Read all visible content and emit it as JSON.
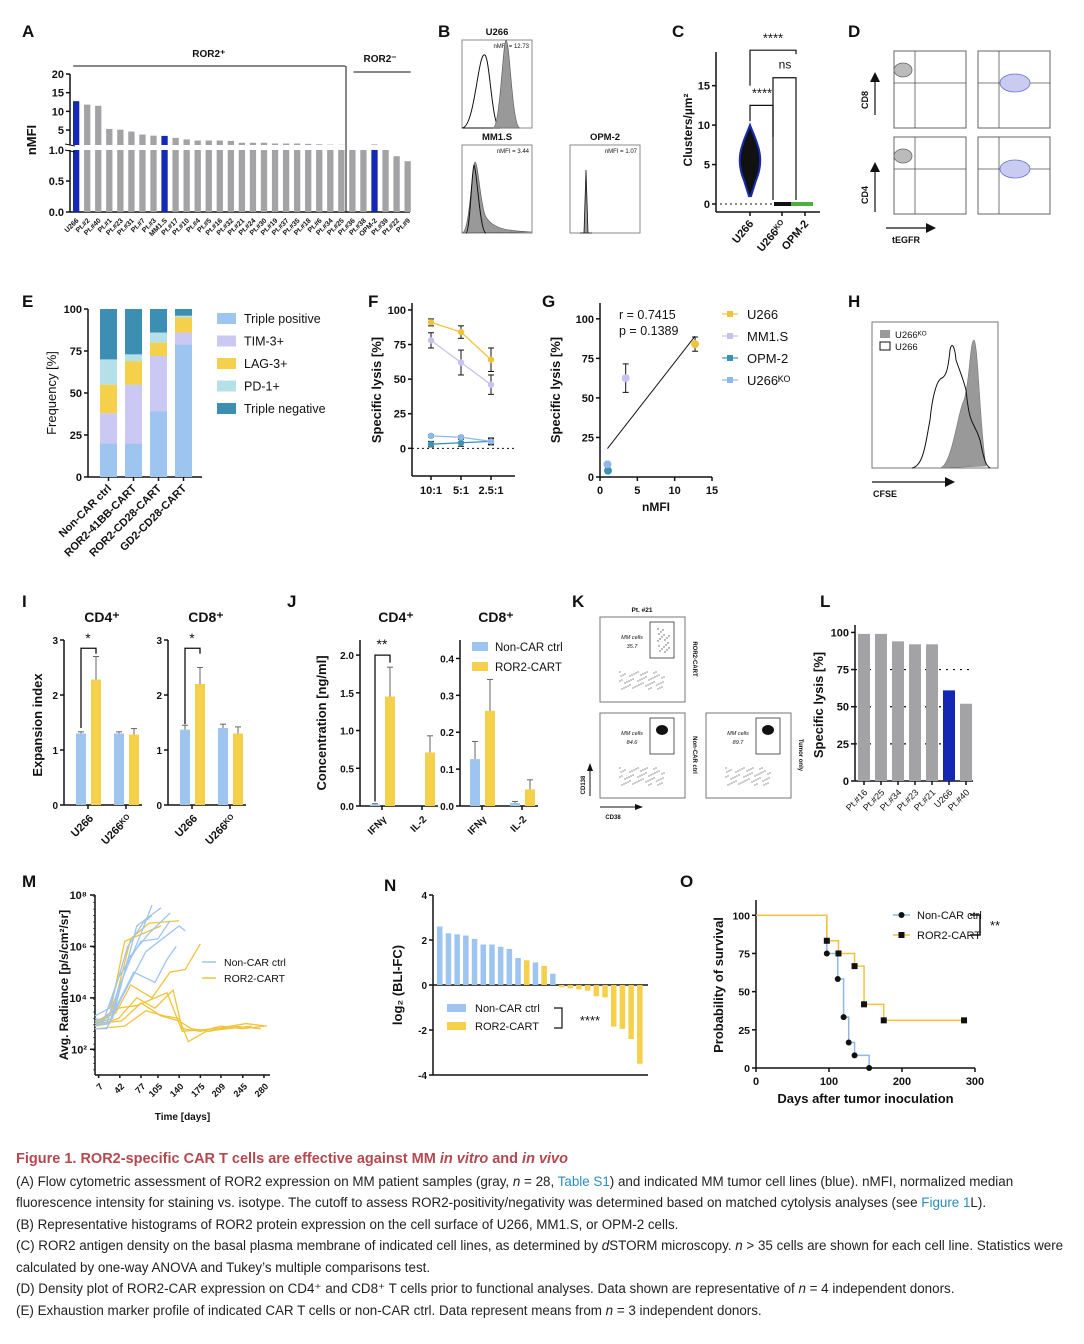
{
  "panels": {
    "A": {
      "letter": "A",
      "group_pos": "ROR2⁺",
      "group_neg": "ROR2⁻",
      "ylabel": "nMFI"
    },
    "B": {
      "letter": "B",
      "hist": [
        {
          "title": "U266",
          "nmfi": "nMFI = 12.73"
        },
        {
          "title": "MM1.S",
          "nmfi": "nMFI = 3.44"
        },
        {
          "title": "OPM-2",
          "nmfi": "nMFI = 1.07"
        }
      ]
    },
    "C": {
      "letter": "C",
      "ylabel": "Clusters/µm²",
      "sig_top": "****",
      "sig_ns": "ns",
      "sig_mid": "****"
    },
    "D": {
      "letter": "D",
      "ylabel_top": "CD8",
      "ylabel_bottom": "CD4",
      "xlabel": "tEGFR"
    },
    "E": {
      "letter": "E"
    },
    "F": {
      "letter": "F"
    },
    "G": {
      "letter": "G",
      "r": "r = 0.7415",
      "p": "p = 0.1389"
    },
    "H": {
      "letter": "H",
      "legend": [
        "U266ᴷᴼ",
        "U266"
      ],
      "xlabel": "CFSE"
    },
    "I": {
      "letter": "I"
    },
    "J": {
      "letter": "J"
    },
    "K": {
      "letter": "K",
      "title": "Pt. #21",
      "gates": [
        {
          "label": "MM cells",
          "value": "35.7",
          "condition": "ROR2-CART"
        },
        {
          "label": "MM cells",
          "value": "84.6",
          "condition": "Non-CAR ctrl"
        },
        {
          "label": "MM cells",
          "value": "89.7",
          "condition": "Tumor only"
        }
      ],
      "ylabel": "CD138",
      "xlabel": "CD38"
    },
    "L": {
      "letter": "L"
    },
    "M": {
      "letter": "M"
    },
    "N": {
      "letter": "N"
    },
    "O": {
      "letter": "O"
    }
  },
  "caption": {
    "title_prefix": "Figure 1.  ROR2-specific CAR T cells are effective against MM ",
    "title_it1": "in vitro",
    "title_mid": " and ",
    "title_it2": "in vivo",
    "A_1": "(A) Flow cytometric assessment of ROR2 expression on MM patient samples (gray, ",
    "A_n": "n",
    "A_2": " = 28, ",
    "A_link1": "Table S1",
    "A_3": ") and indicated MM tumor cell lines (blue). nMFI, normalized median fluorescence intensity for staining vs. isotype. The cutoff to assess ROR2-positivity/negativity was determined based on matched cytolysis analyses (see ",
    "A_link2": "Figure 1",
    "A_4": "L).",
    "B": "(B) Representative histograms of ROR2 protein expression on the cell surface of U266, MM1.S, or OPM-2 cells.",
    "C_1": "(C) ROR2 antigen density on the basal plasma membrane of indicated cell lines, as determined by ",
    "C_d": "d",
    "C_2": "STORM microscopy. ",
    "C_n": "n",
    "C_3": " > 35 cells are shown for each cell line. Statistics were calculated by one-way ANOVA and Tukey’s multiple comparisons test.",
    "D_1": "(D) Density plot of ROR2-CAR expression on CD4⁺ and CD8⁺ T cells prior to functional analyses. Data shown are representative of ",
    "D_n": "n",
    "D_2": " = 4 independent donors.",
    "E_1": "(E) Exhaustion marker profile of indicated CAR T cells or non-CAR ctrl. Data represent means from ",
    "E_n": "n",
    "E_2": " = 3 independent donors."
  },
  "chart_data": [
    {
      "id": "A",
      "type": "bar",
      "title": "",
      "xlabel": "",
      "ylabel": "nMFI",
      "categories": [
        "U266",
        "Pt.#2",
        "Pt.#40",
        "Pt.#1",
        "Pt.#23",
        "Pt.#31",
        "Pt.#7",
        "Pt.#3",
        "MM1.S",
        "Pt.#17",
        "Pt.#10",
        "Pt.#4",
        "Pt.#5",
        "Pt.#16",
        "Pt.#32",
        "Pt.#21",
        "Pt.#24",
        "Pt.#30",
        "Pt.#19",
        "Pt.#37",
        "Pt.#35",
        "Pt.#18",
        "Pt.#6",
        "Pt.#34",
        "Pt.#25",
        "Pt.#36",
        "Pt.#38",
        "OPM-2",
        "Pt.#39",
        "Pt.#22",
        "Pt.#9"
      ],
      "values": [
        12.73,
        11.8,
        11.5,
        5.3,
        5.1,
        4.6,
        3.8,
        3.5,
        3.44,
        2.9,
        2.5,
        2.2,
        2.2,
        2.2,
        2.1,
        1.6,
        1.6,
        1.6,
        1.4,
        1.4,
        1.4,
        1.3,
        1.2,
        1.1,
        1.05,
        1.0,
        1.0,
        1.07,
        1.0,
        0.9,
        0.82
      ],
      "colors": [
        "blue",
        "gray",
        "gray",
        "gray",
        "gray",
        "gray",
        "gray",
        "gray",
        "blue",
        "gray",
        "gray",
        "gray",
        "gray",
        "gray",
        "gray",
        "gray",
        "gray",
        "gray",
        "gray",
        "gray",
        "gray",
        "gray",
        "gray",
        "gray",
        "gray",
        "gray",
        "gray",
        "blue",
        "gray",
        "gray",
        "gray"
      ],
      "ylim_lower": [
        0,
        1.0
      ],
      "ylim_upper": [
        1.0,
        20
      ],
      "yticks_lower": [
        "0.0",
        "0.5",
        "1.0"
      ],
      "yticks_upper": [
        "5",
        "10",
        "15",
        "20"
      ],
      "groups": [
        {
          "label": "ROR2⁺",
          "from": 0,
          "to": 24
        },
        {
          "label": "ROR2⁻",
          "from": 25,
          "to": 30
        }
      ]
    },
    {
      "id": "C",
      "type": "scatter",
      "ylabel": "Clusters/µm²",
      "categories": [
        "U266",
        "U266ᴷᴼ",
        "OPM-2"
      ],
      "median": [
        6.0,
        0,
        0
      ],
      "range": [
        [
          1,
          10
        ],
        [
          0,
          0
        ],
        [
          0,
          0
        ]
      ],
      "ylim": [
        0,
        18
      ],
      "yticks": [
        "0",
        "5",
        "10",
        "15"
      ],
      "colors": [
        "#1a2bb0",
        "#111111",
        "#4fae3f"
      ]
    },
    {
      "id": "E",
      "type": "bar",
      "stacked": true,
      "ylabel": "Frequency [%]",
      "ylim": [
        0,
        100
      ],
      "yticks": [
        "0",
        "25",
        "50",
        "75",
        "100"
      ],
      "categories": [
        "Non-CAR ctrl",
        "ROR2-41BB-CART",
        "ROR2-CD28-CART",
        "GD2-CD28-CART"
      ],
      "series": [
        {
          "name": "Triple positive",
          "color": "#9ec4f0",
          "values": [
            20,
            20,
            39,
            79
          ]
        },
        {
          "name": "TIM-3+",
          "color": "#cbc8f3",
          "values": [
            18,
            35,
            33,
            7
          ]
        },
        {
          "name": "LAG-3+",
          "color": "#f5d04a",
          "values": [
            17,
            14,
            8,
            9
          ]
        },
        {
          "name": "PD-1+",
          "color": "#b5e0ea",
          "values": [
            15,
            4,
            6,
            1
          ]
        },
        {
          "name": "Triple negative",
          "color": "#3c8fb3",
          "values": [
            30,
            27,
            14,
            4
          ]
        }
      ],
      "legend": "right"
    },
    {
      "id": "F",
      "type": "line",
      "ylabel": "Specific lysis [%]",
      "categories": [
        "10:1",
        "5:1",
        "2.5:1"
      ],
      "ylim": [
        -20,
        105
      ],
      "yticks": [
        "0",
        "25",
        "50",
        "75",
        "100"
      ],
      "series": [
        {
          "name": "U266",
          "color": "#f0c43a",
          "values": [
            91,
            84,
            64
          ],
          "err": [
            2.5,
            4.5,
            8.5
          ]
        },
        {
          "name": "MM1.S",
          "color": "#c7c3ef",
          "values": [
            78,
            62,
            46
          ],
          "err": [
            5.5,
            9,
            7
          ]
        },
        {
          "name": "OPM-2",
          "color": "#3a93b2",
          "values": [
            3,
            4,
            5
          ],
          "err": [
            2,
            2.5,
            2.5
          ]
        },
        {
          "name": "U266ᴷᴼ",
          "color": "#8fb8e8",
          "values": [
            9,
            8,
            5
          ],
          "err": [
            1,
            1,
            2
          ]
        }
      ]
    },
    {
      "id": "G",
      "type": "scatter",
      "xlabel": "nMFI",
      "ylabel": "Specific lysis [%]",
      "xlim": [
        0,
        15
      ],
      "ylim": [
        0,
        110
      ],
      "xticks": [
        "0",
        "5",
        "10",
        "15"
      ],
      "yticks": [
        "0",
        "25",
        "50",
        "75",
        "100"
      ],
      "annotations": [
        "r = 0.7415",
        "p = 0.1389"
      ],
      "points": [
        {
          "name": "U266",
          "x": 12.73,
          "y": 84,
          "err": 4.5,
          "color": "#f0c43a"
        },
        {
          "name": "MM1.S",
          "x": 3.44,
          "y": 62.5,
          "err": 9,
          "color": "#c7c3ef"
        },
        {
          "name": "OPM-2",
          "x": 1.07,
          "y": 4,
          "err": 1.5,
          "color": "#3a93b2"
        },
        {
          "name": "U266ᴷᴼ",
          "x": 1.0,
          "y": 8,
          "err": 1,
          "color": "#8fb8e8"
        }
      ],
      "fit": {
        "x": [
          1,
          12.73
        ],
        "y": [
          18,
          89
        ]
      },
      "legend": [
        "U266",
        "MM1.S",
        "OPM-2",
        "U266ᴷᴼ"
      ]
    },
    {
      "id": "I_CD4",
      "type": "bar",
      "title": "CD4⁺",
      "ylabel": "Expansion index",
      "ylim": [
        0,
        3
      ],
      "yticks": [
        "0",
        "1",
        "2",
        "3"
      ],
      "categories": [
        "U266",
        "U266ᴷᴼ"
      ],
      "series": [
        {
          "name": "Non-CAR ctrl",
          "color": "#9ec4f0",
          "values": [
            1.3,
            1.3
          ],
          "err": [
            0.03,
            0.03
          ]
        },
        {
          "name": "ROR2-CART",
          "color": "#f5d04a",
          "values": [
            2.28,
            1.28
          ],
          "err": [
            0.42,
            0.11
          ]
        }
      ],
      "sig": "*"
    },
    {
      "id": "I_CD8",
      "type": "bar",
      "title": "CD8⁺",
      "ylabel": "",
      "ylim": [
        0,
        3
      ],
      "yticks": [
        "0",
        "1",
        "2",
        "3"
      ],
      "categories": [
        "U266",
        "U266ᴷᴼ"
      ],
      "series": [
        {
          "name": "Non-CAR ctrl",
          "color": "#9ec4f0",
          "values": [
            1.37,
            1.4
          ],
          "err": [
            0.08,
            0.07
          ]
        },
        {
          "name": "ROR2-CART",
          "color": "#f5d04a",
          "values": [
            2.2,
            1.3
          ],
          "err": [
            0.3,
            0.12
          ]
        }
      ],
      "sig": "*"
    },
    {
      "id": "J_CD4",
      "type": "bar",
      "title": "CD4⁺",
      "ylabel": "Concentration [ng/ml]",
      "ylim": [
        0,
        2.2
      ],
      "yticks": [
        "0.0",
        "0.5",
        "1.0",
        "1.5",
        "2.0"
      ],
      "categories": [
        "IFNγ",
        "IL-2"
      ],
      "series": [
        {
          "name": "Non-CAR ctrl",
          "color": "#9ec4f0",
          "values": [
            0.02,
            0.0
          ],
          "err": [
            0.01,
            0
          ]
        },
        {
          "name": "ROR2-CART",
          "color": "#f5d04a",
          "values": [
            1.45,
            0.71
          ],
          "err": [
            0.39,
            0.22
          ]
        }
      ],
      "sig": "**"
    },
    {
      "id": "J_CD8",
      "type": "bar",
      "title": "CD8⁺",
      "ylabel": "",
      "ylim": [
        0,
        0.45
      ],
      "yticks": [
        "0.0",
        "0.1",
        "0.2",
        "0.3",
        "0.4"
      ],
      "categories": [
        "IFNγ",
        "IL-2"
      ],
      "series": [
        {
          "name": "Non-CAR ctrl",
          "color": "#9ec4f0",
          "values": [
            0.127,
            0.008
          ],
          "err": [
            0.048,
            0.004
          ]
        },
        {
          "name": "ROR2-CART",
          "color": "#f5d04a",
          "values": [
            0.258,
            0.045
          ],
          "err": [
            0.085,
            0.026
          ]
        }
      ],
      "legend": [
        "Non-CAR ctrl",
        "ROR2-CART"
      ]
    },
    {
      "id": "L",
      "type": "bar",
      "ylabel": "Specific lysis [%]",
      "ylim": [
        0,
        105
      ],
      "yticks": [
        "0",
        "25",
        "50",
        "75",
        "100"
      ],
      "categories": [
        "Pt.#16",
        "Pt.#25",
        "Pt.#34",
        "Pt.#23",
        "Pt.#21",
        "U266",
        "Pt.#40"
      ],
      "values": [
        99,
        99,
        94,
        92,
        92,
        61,
        52
      ],
      "colors": [
        "gray",
        "gray",
        "gray",
        "gray",
        "gray",
        "blue",
        "gray"
      ],
      "gridlines": [
        25,
        50,
        75
      ]
    },
    {
      "id": "M",
      "type": "line",
      "xlabel": "Time [days]",
      "ylabel": "Avg. Radiance [p/s/cm²/sr]",
      "yscale": "log",
      "ylim_log10": [
        1,
        8
      ],
      "yticks": [
        "10²",
        "10⁴",
        "10⁶",
        "10⁸"
      ],
      "xticks": [
        "7",
        "42",
        "77",
        "105",
        "140",
        "175",
        "209",
        "245",
        "280"
      ],
      "xlim": [
        1,
        290
      ],
      "legend": [
        "Non-CAR ctrl",
        "ROR2-CART"
      ]
    },
    {
      "id": "N",
      "type": "bar",
      "ylabel": "log₂ (BLI-FC)",
      "ylim": [
        -4,
        4
      ],
      "yticks": [
        "-4",
        "-2",
        "0",
        "2",
        "4"
      ],
      "values": [
        2.6,
        2.3,
        2.25,
        2.2,
        2.05,
        1.8,
        1.8,
        1.7,
        1.6,
        1.2,
        1.1,
        1.0,
        0.85,
        0.5,
        -0.1,
        -0.15,
        -0.2,
        -0.25,
        -0.5,
        -0.55,
        -1.85,
        -1.95,
        -2.4,
        -3.5
      ],
      "groups": [
        "ctrl",
        "ctrl",
        "ctrl",
        "ctrl",
        "ctrl",
        "ctrl",
        "ctrl",
        "ctrl",
        "ctrl",
        "ctrl",
        "cart",
        "ctrl",
        "cart",
        "ctrl",
        "cart",
        "cart",
        "cart",
        "cart",
        "cart",
        "cart",
        "cart",
        "cart",
        "cart",
        "cart"
      ],
      "legend": [
        "Non-CAR ctrl",
        "ROR2-CART"
      ],
      "sig": "****"
    },
    {
      "id": "O",
      "type": "line",
      "xlabel": "Days after tumor inoculation",
      "ylabel": "Probability of survival",
      "xlim": [
        0,
        300
      ],
      "ylim": [
        0,
        110
      ],
      "xticks": [
        "0",
        "100",
        "200",
        "300"
      ],
      "yticks": [
        "0",
        "25",
        "50",
        "75",
        "100"
      ],
      "series": [
        {
          "name": "Non-CAR ctrl",
          "color": "#8fb8e8",
          "steps": [
            [
              0,
              100
            ],
            [
              97,
              75
            ],
            [
              112,
              58.3
            ],
            [
              120,
              33.3
            ],
            [
              127,
              16.7
            ],
            [
              135,
              8.3
            ],
            [
              155,
              0
            ]
          ]
        },
        {
          "name": "ROR2-CART",
          "color": "#f0c43a",
          "steps": [
            [
              0,
              100
            ],
            [
              97,
              83.3
            ],
            [
              113,
              75
            ],
            [
              135,
              66.7
            ],
            [
              148,
              41.7
            ],
            [
              175,
              31.2
            ],
            [
              285,
              31.2
            ]
          ]
        }
      ],
      "sig": "**"
    }
  ]
}
